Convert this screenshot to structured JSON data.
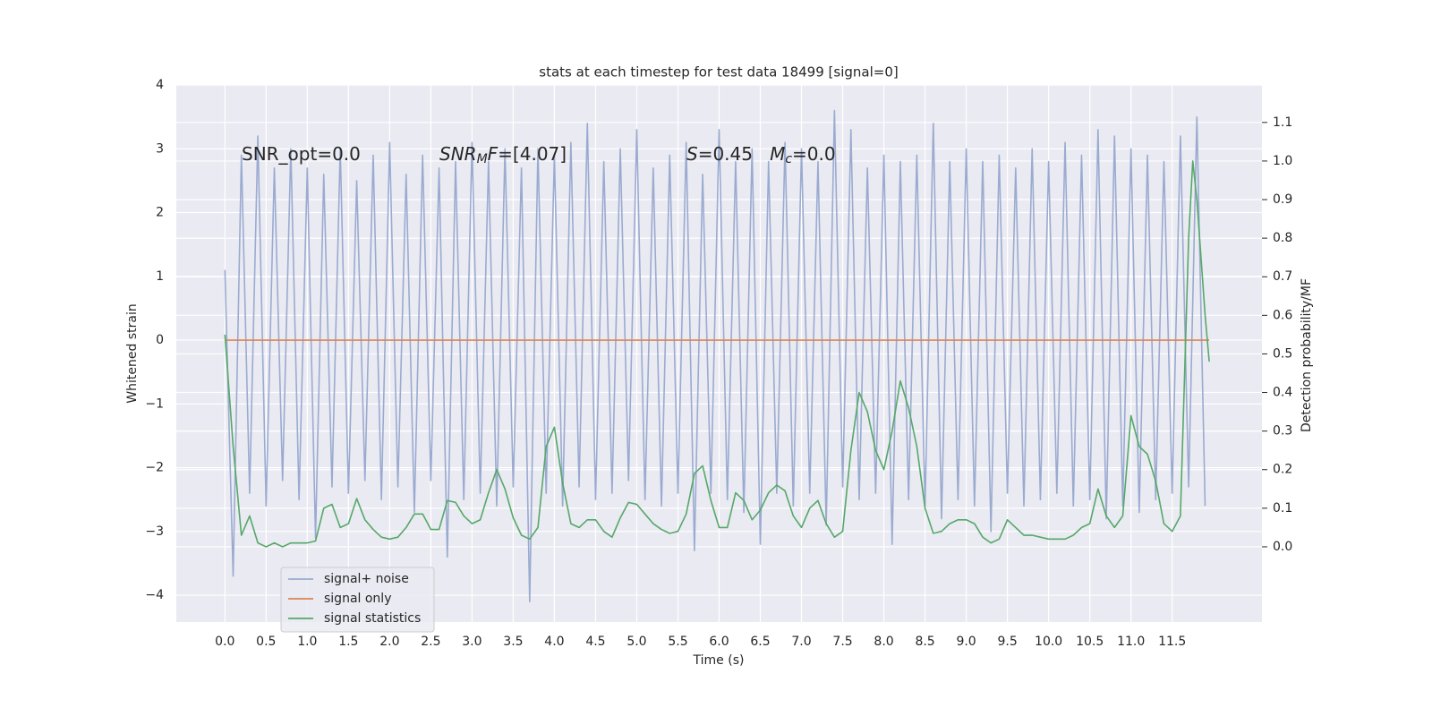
{
  "chart_data": {
    "type": "line",
    "title": "stats at each timestep for test data 18499 [signal=0]",
    "x_label": "Time (s)",
    "y_label": "Whitened strain",
    "y2_label": "Detection probability/MF",
    "xlim": [
      -0.59,
      12.59
    ],
    "ylim": [
      -4.42,
      4
    ],
    "y2lim": [
      -0.195,
      1.197
    ],
    "xticks": [
      {
        "value": 0,
        "label": "0.0"
      },
      0.5,
      {
        "value": 1,
        "label": "1.0"
      },
      1.5,
      {
        "value": 2,
        "label": "2.0"
      },
      2.5,
      {
        "value": 3,
        "label": "3.0"
      },
      3.5,
      {
        "value": 4,
        "label": "4.0"
      },
      4.5,
      {
        "value": 5,
        "label": "5.0"
      },
      5.5,
      {
        "value": 6,
        "label": "6.0"
      },
      6.5,
      {
        "value": 7,
        "label": "7.0"
      },
      7.5,
      {
        "value": 8,
        "label": "8.0"
      },
      8.5,
      {
        "value": 9,
        "label": "9.0"
      },
      9.5,
      {
        "value": 10,
        "label": "10.0"
      },
      10.5,
      {
        "value": 11,
        "label": "11.0"
      },
      11.5
    ],
    "yticks": [
      {
        "value": -4,
        "label": "−4"
      },
      {
        "value": -3,
        "label": "−3"
      },
      {
        "value": -2,
        "label": "−2"
      },
      {
        "value": -1,
        "label": "−1"
      },
      0,
      1,
      2,
      3,
      4
    ],
    "y2ticks": [
      {
        "value": 0,
        "label": "0.0"
      },
      0.1,
      0.2,
      0.3,
      0.4,
      0.5,
      0.6,
      0.7,
      0.8,
      0.9,
      {
        "value": 1,
        "label": "1.0"
      },
      1.1
    ],
    "grid": true,
    "legend": "lower left",
    "annotations": [
      [
        {
          "text": "SNR_opt=0.0",
          "style": "normal"
        }
      ],
      [
        {
          "text": "SNR",
          "style": "italic"
        },
        {
          "text": "M",
          "style": "sub"
        },
        {
          "text": "F",
          "style": "italic"
        },
        {
          "text": "=[4.07]",
          "style": "normal"
        }
      ],
      [
        {
          "text": "S",
          "style": "italic"
        },
        {
          "text": "=0.45   ",
          "style": "normal"
        },
        {
          "text": "M",
          "style": "italic"
        },
        {
          "text": "c",
          "style": "sub"
        },
        {
          "text": "=0.0",
          "style": "normal"
        }
      ]
    ],
    "series": [
      {
        "name": "signal+ noise",
        "color": "#9aabd0",
        "axis": "y",
        "x": [
          0,
          0.1,
          0.2,
          0.3,
          0.4,
          0.5,
          0.6,
          0.7,
          0.8,
          0.9,
          1,
          1.1,
          1.2,
          1.3,
          1.4,
          1.5,
          1.6,
          1.7,
          1.8,
          1.9,
          2,
          2.1,
          2.2,
          2.3,
          2.4,
          2.5,
          2.6,
          2.7,
          2.8,
          2.9,
          3,
          3.1,
          3.2,
          3.3,
          3.4,
          3.5,
          3.6,
          3.7,
          3.8,
          3.9,
          4,
          4.1,
          4.2,
          4.3,
          4.4,
          4.5,
          4.6,
          4.7,
          4.8,
          4.9,
          5,
          5.1,
          5.2,
          5.3,
          5.4,
          5.5,
          5.6,
          5.7,
          5.8,
          5.9,
          6,
          6.1,
          6.2,
          6.3,
          6.4,
          6.5,
          6.6,
          6.7,
          6.8,
          6.9,
          7,
          7.1,
          7.2,
          7.3,
          7.4,
          7.5,
          7.6,
          7.7,
          7.8,
          7.9,
          8,
          8.1,
          8.2,
          8.3,
          8.4,
          8.5,
          8.6,
          8.7,
          8.8,
          8.9,
          9,
          9.1,
          9.2,
          9.3,
          9.4,
          9.5,
          9.6,
          9.7,
          9.8,
          9.9,
          10,
          10.1,
          10.2,
          10.3,
          10.4,
          10.5,
          10.6,
          10.7,
          10.8,
          10.9,
          11,
          11.1,
          11.2,
          11.3,
          11.4,
          11.5,
          11.6,
          11.7,
          11.8,
          11.9
        ],
        "values": [
          1.1,
          -3.7,
          2.9,
          -2.4,
          3.2,
          -2.6,
          2.7,
          -2.2,
          3.0,
          -2.5,
          2.7,
          -3.1,
          2.6,
          -2.3,
          3.0,
          -2.4,
          2.5,
          -2.2,
          2.9,
          -2.5,
          3.1,
          -2.3,
          2.6,
          -2.7,
          2.9,
          -2.2,
          2.7,
          -3.4,
          2.8,
          -2.5,
          3.1,
          -2.4,
          2.8,
          -2.6,
          3.0,
          -2.3,
          2.7,
          -4.1,
          3.0,
          -2.4,
          2.9,
          -2.6,
          3.1,
          -2.3,
          3.4,
          -2.5,
          2.8,
          -2.4,
          3.0,
          -2.2,
          3.3,
          -2.5,
          2.7,
          -2.6,
          2.9,
          -2.4,
          3.1,
          -3.3,
          2.6,
          -2.4,
          3.3,
          -2.5,
          2.8,
          -2.7,
          3.0,
          -3.2,
          2.8,
          -2.4,
          3.1,
          -2.6,
          3.0,
          -2.4,
          2.8,
          -2.9,
          3.6,
          -2.3,
          3.3,
          -2.5,
          2.7,
          -2.4,
          2.9,
          -3.2,
          2.8,
          -2.5,
          2.9,
          -2.6,
          3.4,
          -2.8,
          2.8,
          -2.5,
          3.0,
          -2.6,
          2.8,
          -3.0,
          2.9,
          -2.4,
          2.7,
          -2.6,
          3.0,
          -2.5,
          2.8,
          -2.4,
          3.1,
          -2.6,
          2.9,
          -2.5,
          3.3,
          -2.8,
          3.2,
          -2.6,
          3.0,
          -2.7,
          2.9,
          -2.5,
          2.8,
          -2.4,
          3.2,
          -2.3,
          3.5,
          -2.6
        ]
      },
      {
        "name": "signal only",
        "color": "#dd8452",
        "axis": "y",
        "x": [
          0,
          11.95
        ],
        "values": [
          0,
          0
        ]
      },
      {
        "name": "signal statistics",
        "color": "#55a868",
        "axis": "y2",
        "x": [
          0,
          0.1,
          0.2,
          0.3,
          0.4,
          0.5,
          0.6,
          0.7,
          0.8,
          0.9,
          1,
          1.1,
          1.2,
          1.3,
          1.4,
          1.5,
          1.6,
          1.7,
          1.8,
          1.9,
          2,
          2.1,
          2.2,
          2.3,
          2.4,
          2.5,
          2.6,
          2.7,
          2.8,
          2.9,
          3,
          3.1,
          3.2,
          3.3,
          3.4,
          3.5,
          3.6,
          3.7,
          3.8,
          3.9,
          4,
          4.1,
          4.2,
          4.3,
          4.4,
          4.5,
          4.6,
          4.7,
          4.8,
          4.9,
          5,
          5.1,
          5.2,
          5.3,
          5.4,
          5.5,
          5.6,
          5.7,
          5.8,
          5.9,
          6,
          6.1,
          6.2,
          6.3,
          6.4,
          6.5,
          6.6,
          6.7,
          6.8,
          6.9,
          7,
          7.1,
          7.2,
          7.3,
          7.4,
          7.5,
          7.6,
          7.7,
          7.8,
          7.9,
          8,
          8.1,
          8.2,
          8.3,
          8.4,
          8.5,
          8.6,
          8.7,
          8.8,
          8.9,
          9,
          9.1,
          9.2,
          9.3,
          9.4,
          9.5,
          9.6,
          9.7,
          9.8,
          9.9,
          10,
          10.1,
          10.2,
          10.3,
          10.4,
          10.5,
          10.6,
          10.7,
          10.8,
          10.9,
          11,
          11.1,
          11.2,
          11.3,
          11.4,
          11.5,
          11.6,
          11.7,
          11.75,
          11.8,
          11.9,
          11.95
        ],
        "values": [
          0.55,
          0.26,
          0.03,
          0.08,
          0.01,
          0,
          0.01,
          0,
          0.01,
          0.01,
          0.01,
          0.015,
          0.1,
          0.11,
          0.05,
          0.06,
          0.125,
          0.07,
          0.045,
          0.025,
          0.02,
          0.025,
          0.05,
          0.085,
          0.085,
          0.045,
          0.045,
          0.12,
          0.115,
          0.08,
          0.06,
          0.07,
          0.14,
          0.2,
          0.15,
          0.075,
          0.03,
          0.02,
          0.05,
          0.26,
          0.31,
          0.165,
          0.06,
          0.05,
          0.07,
          0.07,
          0.04,
          0.025,
          0.075,
          0.115,
          0.11,
          0.085,
          0.06,
          0.045,
          0.035,
          0.04,
          0.085,
          0.19,
          0.21,
          0.12,
          0.05,
          0.05,
          0.14,
          0.12,
          0.07,
          0.095,
          0.14,
          0.16,
          0.145,
          0.08,
          0.05,
          0.1,
          0.12,
          0.06,
          0.025,
          0.04,
          0.25,
          0.4,
          0.35,
          0.25,
          0.2,
          0.3,
          0.43,
          0.36,
          0.26,
          0.1,
          0.035,
          0.04,
          0.06,
          0.07,
          0.07,
          0.06,
          0.025,
          0.01,
          0.02,
          0.07,
          0.05,
          0.03,
          0.03,
          0.025,
          0.02,
          0.02,
          0.02,
          0.03,
          0.05,
          0.06,
          0.15,
          0.08,
          0.05,
          0.08,
          0.34,
          0.26,
          0.24,
          0.17,
          0.06,
          0.04,
          0.08,
          0.8,
          1.0,
          0.9,
          0.6,
          0.48
        ]
      }
    ]
  }
}
